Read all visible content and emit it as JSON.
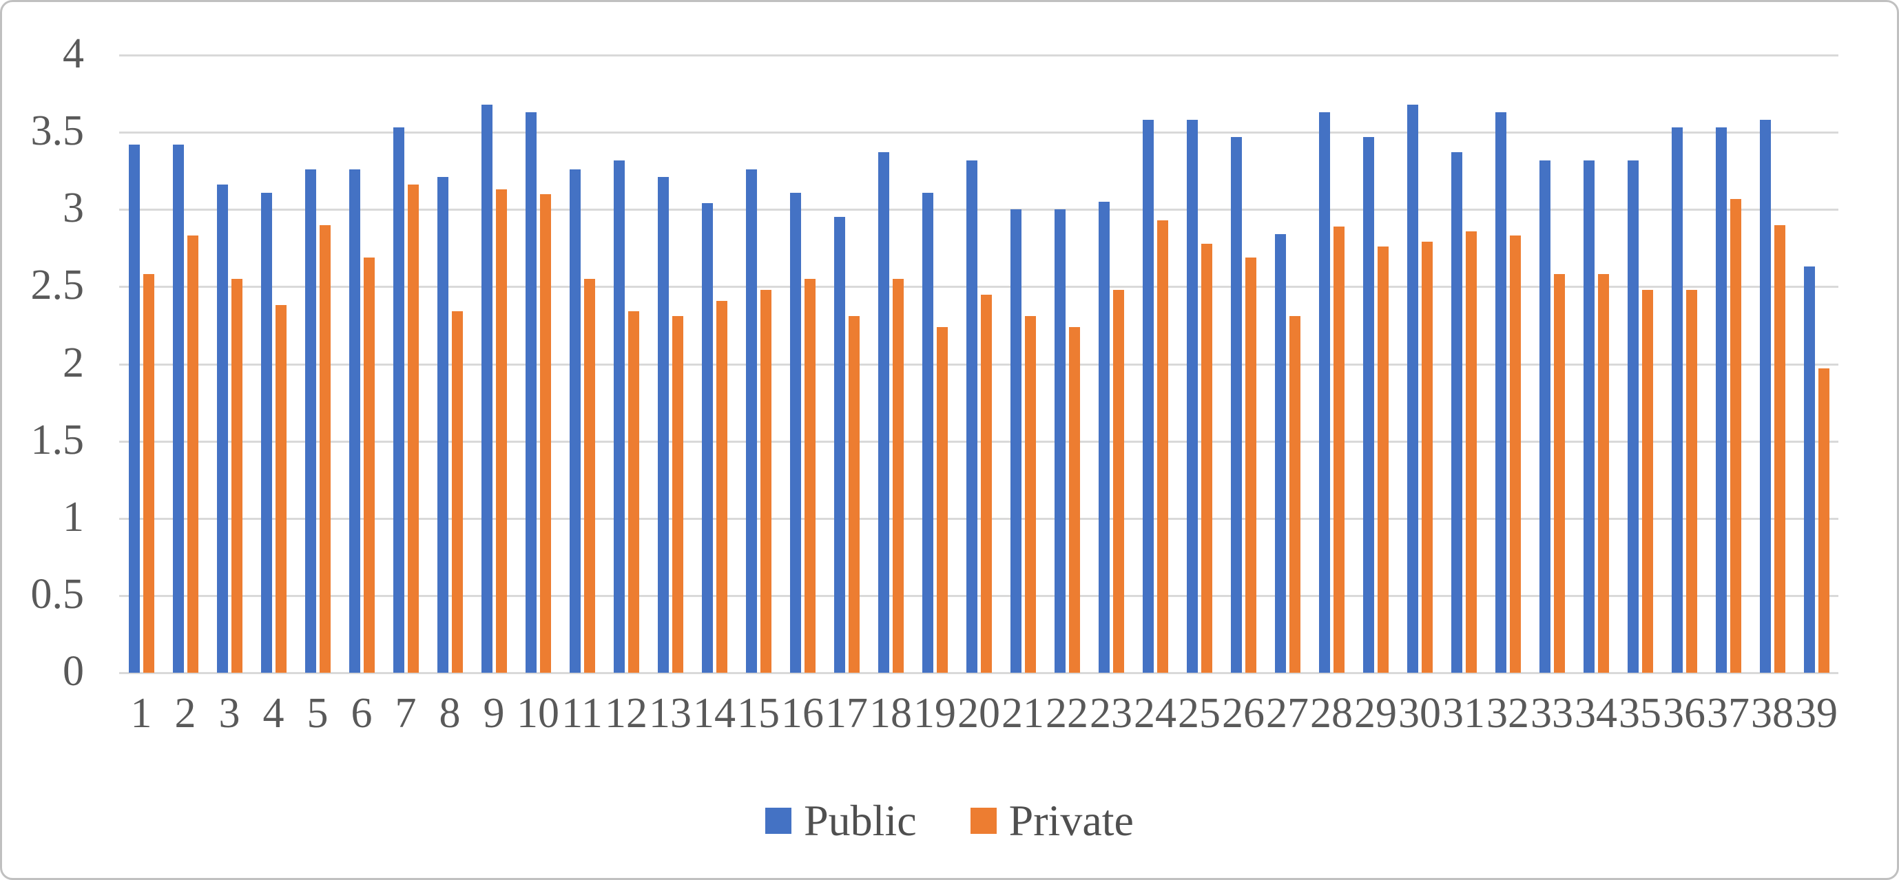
{
  "chart_data": {
    "type": "bar",
    "title": "",
    "xlabel": "",
    "ylabel": "",
    "categories": [
      "1",
      "2",
      "3",
      "4",
      "5",
      "6",
      "7",
      "8",
      "9",
      "10",
      "11",
      "12",
      "13",
      "14",
      "15",
      "16",
      "17",
      "18",
      "19",
      "20",
      "21",
      "22",
      "23",
      "24",
      "25",
      "26",
      "27",
      "28",
      "29",
      "30",
      "31",
      "32",
      "33",
      "34",
      "35",
      "36",
      "37",
      "38",
      "39"
    ],
    "series": [
      {
        "name": "Public",
        "color": "#4472C4",
        "values": [
          3.42,
          3.42,
          3.16,
          3.11,
          3.26,
          3.26,
          3.53,
          3.21,
          3.68,
          3.63,
          3.26,
          3.32,
          3.21,
          3.04,
          3.26,
          3.11,
          2.95,
          3.37,
          3.11,
          3.32,
          3.0,
          3.0,
          3.05,
          3.58,
          3.58,
          3.47,
          2.84,
          3.63,
          3.47,
          3.68,
          3.37,
          3.63,
          3.32,
          3.32,
          3.32,
          3.53,
          3.53,
          3.58,
          2.63
        ]
      },
      {
        "name": "Private",
        "color": "#ED7D31",
        "values": [
          2.58,
          2.83,
          2.55,
          2.38,
          2.9,
          2.69,
          3.16,
          2.34,
          3.13,
          3.1,
          2.55,
          2.34,
          2.31,
          2.41,
          2.48,
          2.55,
          2.31,
          2.55,
          2.24,
          2.45,
          2.31,
          2.24,
          2.48,
          2.93,
          2.78,
          2.69,
          2.31,
          2.89,
          2.76,
          2.79,
          2.86,
          2.83,
          2.58,
          2.58,
          2.48,
          2.48,
          3.07,
          2.9,
          1.97
        ]
      }
    ],
    "ylim": [
      0,
      4
    ],
    "yticks": [
      4,
      3.5,
      3,
      2.5,
      2,
      1.5,
      1,
      0.5,
      0
    ],
    "ytick_labels": [
      "4",
      "3.5",
      "3",
      "2.5",
      "2",
      "1.5",
      "1",
      "0.5",
      "0"
    ],
    "grid": true,
    "legend_position": "bottom",
    "gridline_color": "#d9d9d9",
    "tick_label_color": "#595959"
  }
}
